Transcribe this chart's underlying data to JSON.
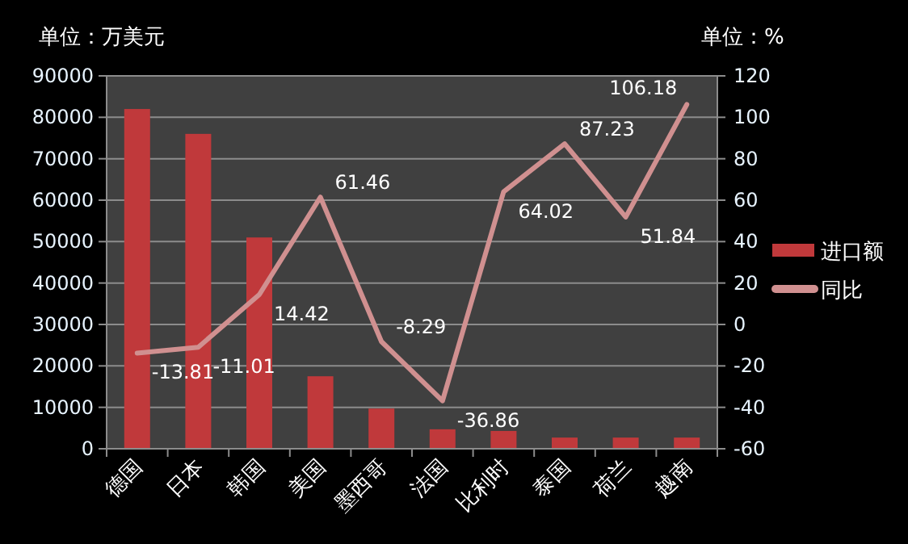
{
  "chart_data": {
    "type": "bar",
    "ylabel": "单位：万美元",
    "y2label": "单位：%",
    "categories": [
      "德国",
      "日本",
      "韩国",
      "美国",
      "墨西哥",
      "法国",
      "比利时",
      "泰国",
      "荷兰",
      "越南"
    ],
    "series": [
      {
        "name": "进口额",
        "color": "#c0393b",
        "values": [
          82000,
          76000,
          51000,
          17500,
          9700,
          4700,
          4300,
          2700,
          2700,
          2700
        ]
      },
      {
        "name": "同比",
        "type": "line",
        "axis": "y2",
        "color": "#d09090",
        "values": [
          -13.81,
          -11.01,
          14.42,
          61.46,
          -8.29,
          -36.86,
          64.02,
          87.23,
          51.84,
          106.18
        ],
        "value_labels": [
          "-13.81",
          "-11.01",
          "14.42",
          "61.46",
          "-8.29",
          "-36.86",
          "64.02",
          "87.23",
          "51.84",
          "106.18"
        ]
      }
    ],
    "ylim": [
      0,
      90000
    ],
    "yticks": [
      0,
      10000,
      20000,
      30000,
      40000,
      50000,
      60000,
      70000,
      80000,
      90000
    ],
    "y2lim": [
      -60,
      120
    ],
    "y2ticks": [
      -60,
      -40,
      -20,
      0,
      20,
      40,
      60,
      80,
      100,
      120
    ],
    "grid": "y",
    "legend": "right"
  }
}
